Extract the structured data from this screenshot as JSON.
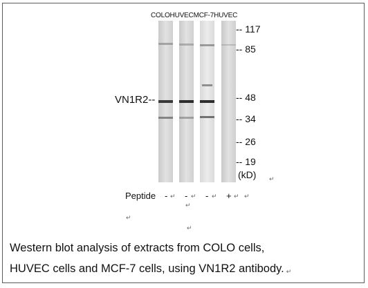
{
  "lanes": [
    "COLO",
    "HUVEC",
    "MCF-7",
    "HUVEC"
  ],
  "protein_label": "VN1R2--",
  "mw_markers": [
    {
      "text": "-- 117",
      "kda": 117
    },
    {
      "text": "-- 85",
      "kda": 85
    },
    {
      "text": "-- 48",
      "kda": 48
    },
    {
      "text": "-- 34",
      "kda": 34
    },
    {
      "text": "-- 26",
      "kda": 26
    },
    {
      "text": "-- 19",
      "kda": 19
    }
  ],
  "unit": "(kD)",
  "peptide": {
    "label": "Peptide",
    "signs": [
      "-",
      "-",
      "-",
      "+"
    ]
  },
  "caption": {
    "line1": "Western blot analysis of extracts from COLO cells,",
    "line2": "HUVEC cells and MCF-7 cells, using VN1R2 antibody."
  },
  "colors": {
    "lane_background": "#d8d8d8",
    "band": "#3a3a3a",
    "border": "#5a5a5a"
  }
}
